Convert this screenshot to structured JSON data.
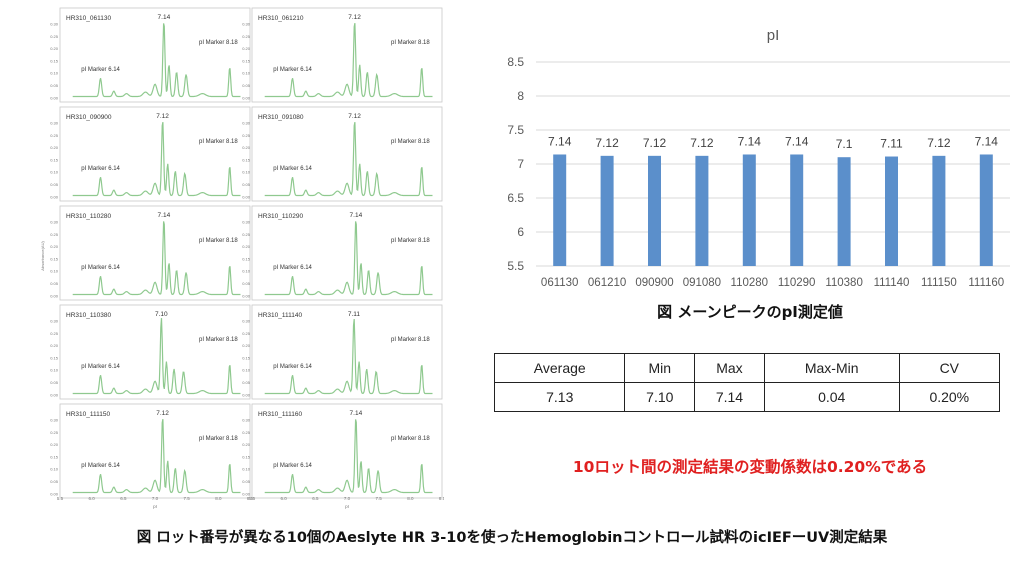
{
  "panels": {
    "y_axis_label": "Absorbance(AU)",
    "x_axis_label": "pI",
    "y_ticks": [
      "0.30",
      "0.25",
      "0.20",
      "0.15",
      "0.10",
      "0.05",
      "0.00"
    ],
    "x_ticks": [
      "5.5",
      "6.0",
      "6.5",
      "7.0",
      "7.5",
      "8.0",
      "8.5"
    ],
    "marker_low_label": "pI Marker 6.14",
    "marker_high_label": "pI Marker 8.18",
    "trace_color": "#8fc98f",
    "items": [
      {
        "name": "HR310_061130",
        "peak": "7.14"
      },
      {
        "name": "HR310_061210",
        "peak": "7.12"
      },
      {
        "name": "HR310_090900",
        "peak": "7.12"
      },
      {
        "name": "HR310_091080",
        "peak": "7.12"
      },
      {
        "name": "HR310_110280",
        "peak": "7.14"
      },
      {
        "name": "HR310_110290",
        "peak": "7.14"
      },
      {
        "name": "HR310_110380",
        "peak": "7.10"
      },
      {
        "name": "HR310_111140",
        "peak": "7.11"
      },
      {
        "name": "HR310_111150",
        "peak": "7.12"
      },
      {
        "name": "HR310_111160",
        "peak": "7.14"
      }
    ]
  },
  "chart_data": {
    "type": "bar",
    "title": "pI",
    "categories": [
      "061130",
      "061210",
      "090900",
      "091080",
      "110280",
      "110290",
      "110380",
      "111140",
      "111150",
      "111160"
    ],
    "values": [
      7.14,
      7.12,
      7.12,
      7.12,
      7.14,
      7.14,
      7.1,
      7.11,
      7.12,
      7.14
    ],
    "value_labels": [
      "7.14",
      "7.12",
      "7.12",
      "7.12",
      "7.14",
      "7.14",
      "7.1",
      "7.11",
      "7.12",
      "7.14"
    ],
    "ylim": [
      5.5,
      8.5
    ],
    "y_ticks": [
      "8.5",
      "8",
      "7.5",
      "7",
      "6.5",
      "6",
      "5.5"
    ],
    "grid": true,
    "bar_color": "#5b8fcb"
  },
  "chart_caption": "図 メーンピークのpI測定値",
  "stats_table": {
    "headers": [
      "Average",
      "Min",
      "Max",
      "Max-Min",
      "CV"
    ],
    "values": [
      "7.13",
      "7.10",
      "7.14",
      "0.04",
      "0.20%"
    ]
  },
  "note": "10ロット間の測定結果の変動係数は0.20%である",
  "note_color": "#e02020",
  "caption": "図 ロット番号が異なる10個のAeslyte HR 3-10を使ったHemoglobinコントロール試料のicIEFーUV測定結果"
}
